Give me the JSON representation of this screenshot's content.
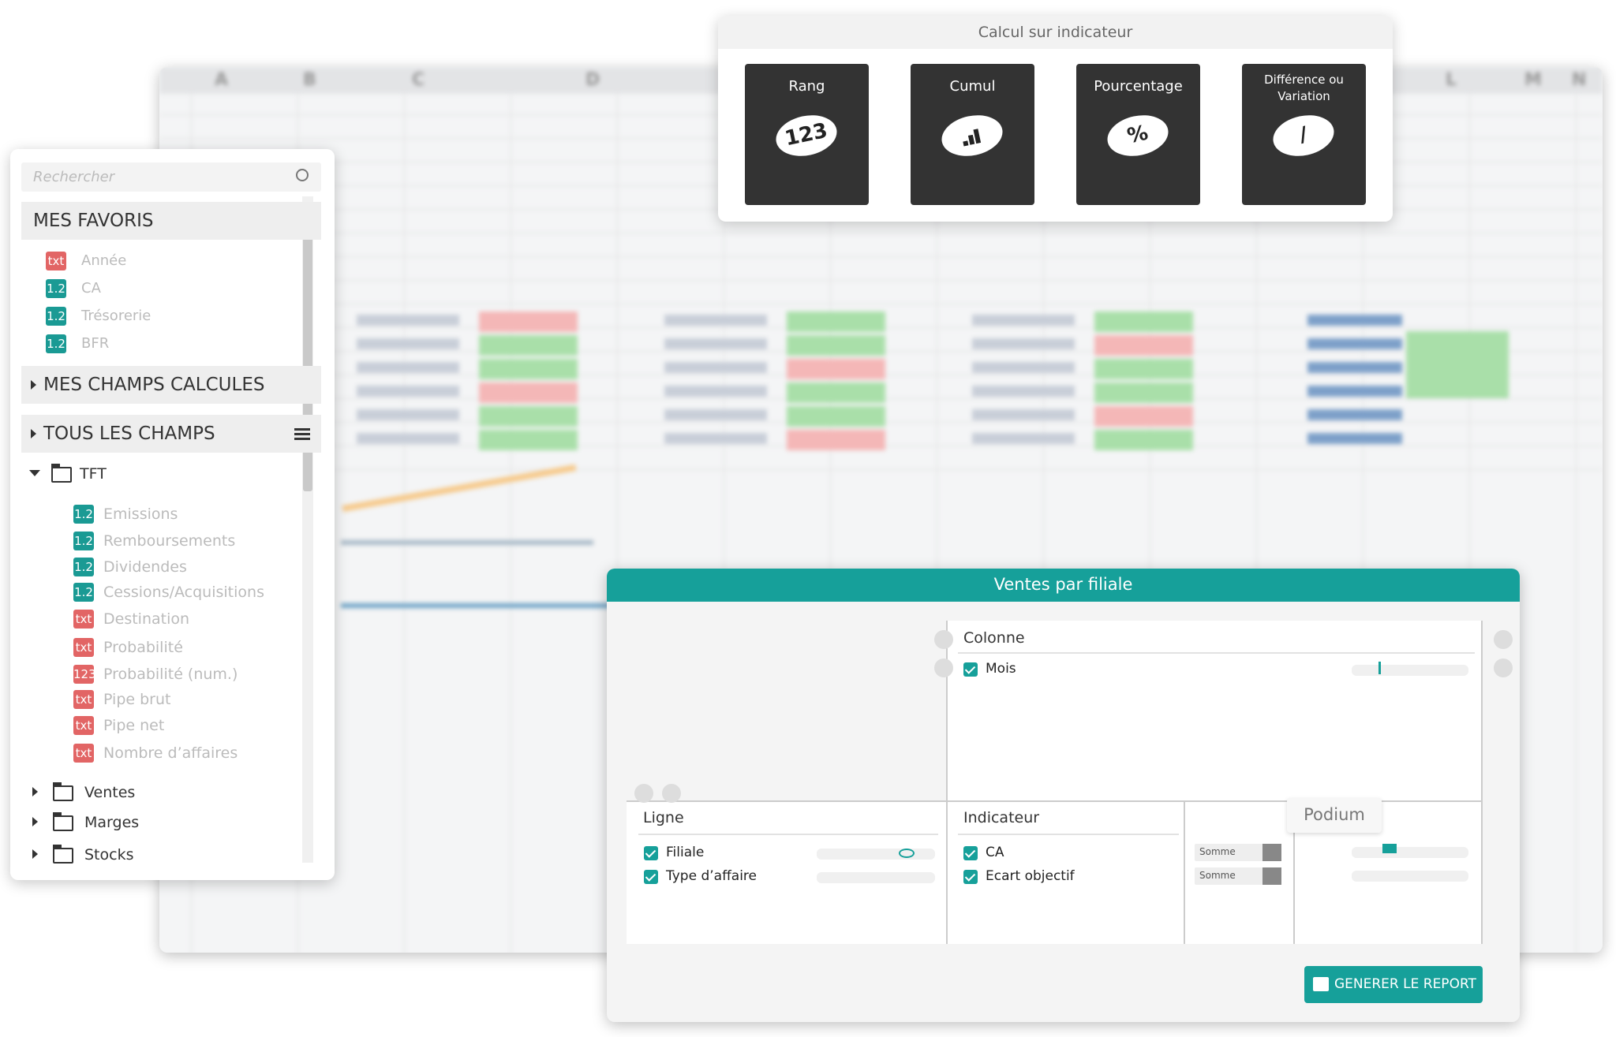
{
  "spreadsheet": {
    "columns": [
      "A",
      "B",
      "C",
      "D",
      "L",
      "M",
      "N"
    ]
  },
  "calc_panel": {
    "title": "Calcul sur indicateur",
    "cards": [
      {
        "label": "Rang",
        "symbol": "123"
      },
      {
        "label": "Cumul",
        "symbol": null
      },
      {
        "label": "Pourcentage",
        "symbol": "%"
      },
      {
        "label": "Différence ou Variation",
        "symbol": "/"
      }
    ]
  },
  "sidebar": {
    "search_placeholder": "Rechercher",
    "favorites_title": "MES FAVORIS",
    "favorites": [
      {
        "badge": "txt",
        "label": "Année"
      },
      {
        "badge": "1.2",
        "label": "CA"
      },
      {
        "badge": "1.2",
        "label": "Trésorerie"
      },
      {
        "badge": "1.2",
        "label": "BFR"
      }
    ],
    "calculated_title": "MES CHAMPS CALCULES",
    "all_fields_title": "TOUS LES CHAMPS",
    "open_folder": "TFT",
    "fields": [
      {
        "badge": "1.2",
        "label": "Emissions"
      },
      {
        "badge": "1.2",
        "label": "Remboursements"
      },
      {
        "badge": "1.2",
        "label": "Dividendes"
      },
      {
        "badge": "1.2",
        "label": "Cessions/Acquisitions"
      },
      {
        "badge": "txt",
        "label": "Destination"
      },
      {
        "badge": "txt",
        "label": "Probabilité"
      },
      {
        "badge": "123",
        "label": "Probabilité (num.)"
      },
      {
        "badge": "txt",
        "label": "Pipe brut"
      },
      {
        "badge": "txt",
        "label": "Pipe net"
      },
      {
        "badge": "txt",
        "label": "Nombre d’affaires"
      }
    ],
    "closed_folders": [
      "Ventes",
      "Marges",
      "Stocks"
    ]
  },
  "report_panel": {
    "title": "Ventes par filiale",
    "column_title": "Colonne",
    "column_fields": [
      "Mois"
    ],
    "row_title": "Ligne",
    "row_fields": [
      "Filiale",
      "Type d’affaire"
    ],
    "indicator_title": "Indicateur",
    "indicators": [
      {
        "label": "CA",
        "aggregation": "Somme"
      },
      {
        "label": "Ecart objectif",
        "aggregation": "Somme"
      }
    ],
    "tooltip": "Podium",
    "button": "GENERER LE REPORT"
  }
}
